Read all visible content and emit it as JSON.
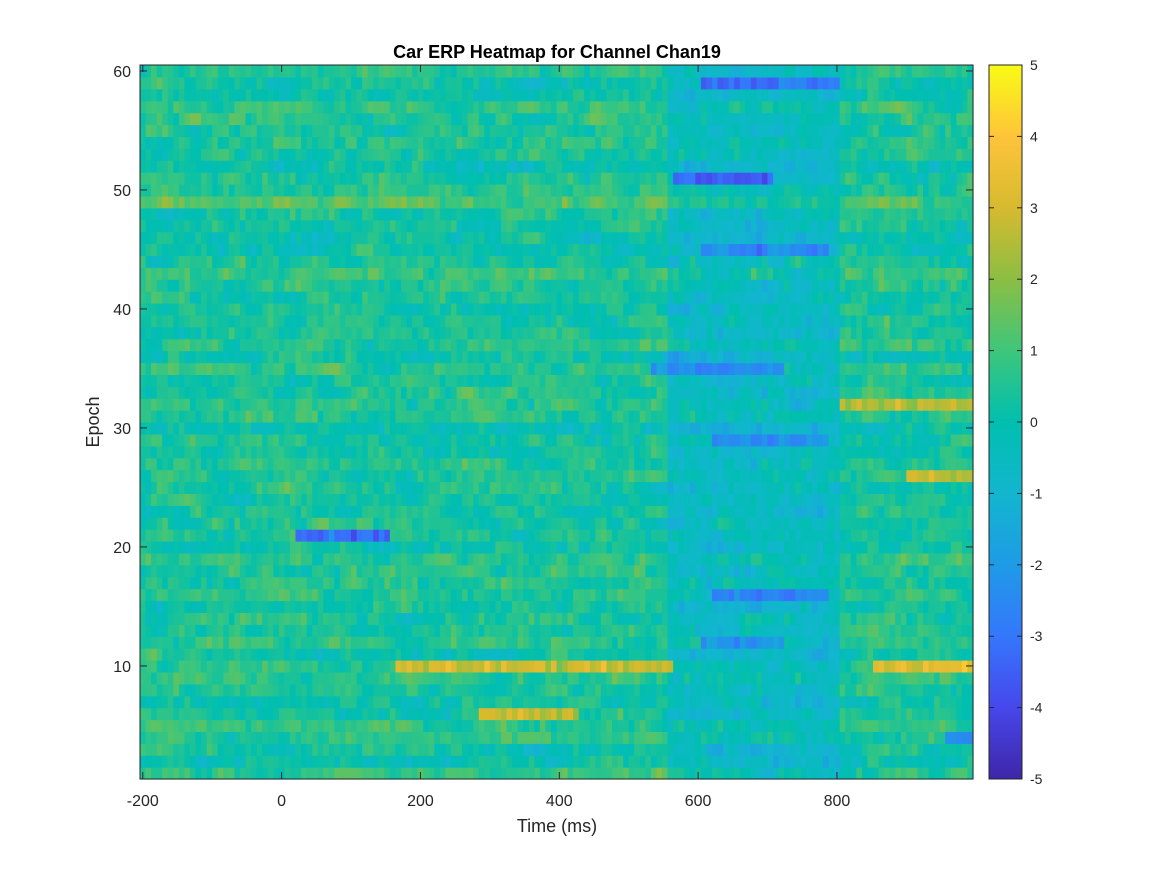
{
  "chart_data": {
    "type": "heatmap",
    "title": "Car ERP Heatmap for Channel Chan19",
    "xlabel": "Time (ms)",
    "ylabel": "Epoch",
    "xlim": [
      -204,
      996
    ],
    "ylim": [
      0.5,
      60.5
    ],
    "x_ticks": [
      -200,
      0,
      200,
      400,
      600,
      800
    ],
    "x_tick_labels": [
      "-200",
      "0",
      "200",
      "400",
      "600",
      "800"
    ],
    "y_ticks": [
      10,
      20,
      30,
      40,
      50,
      60
    ],
    "y_tick_labels": [
      "10",
      "20",
      "30",
      "40",
      "50",
      "60"
    ],
    "colormap": "parula",
    "clim": [
      -5,
      5
    ],
    "colorbar_ticks": [
      -5,
      -4,
      -3,
      -2,
      -1,
      0,
      1,
      2,
      3,
      4,
      5
    ],
    "colorbar_tick_labels": [
      "-5",
      "-4",
      "-3",
      "-2",
      "-1",
      "0",
      "1",
      "2",
      "3",
      "4",
      "5"
    ],
    "n_epochs": 60,
    "n_time_bins": 150,
    "time_bin_ms": 8,
    "dominant_value_range": [
      -1,
      2
    ],
    "features": [
      {
        "epoch": 10,
        "time_ms": [
          160,
          560
        ],
        "approx_value": 3.5
      },
      {
        "epoch": 10,
        "time_ms": [
          850,
          990
        ],
        "approx_value": 4.2
      },
      {
        "epoch": 21,
        "time_ms": [
          20,
          150
        ],
        "approx_value": -4.5
      },
      {
        "epoch": 51,
        "time_ms": [
          560,
          700
        ],
        "approx_value": -4.2
      },
      {
        "epoch": 59,
        "time_ms": [
          600,
          800
        ],
        "approx_value": -3.5
      },
      {
        "epoch": 45,
        "time_ms": [
          600,
          780
        ],
        "approx_value": -3.0
      },
      {
        "epoch": 29,
        "time_ms": [
          620,
          780
        ],
        "approx_value": -3.0
      },
      {
        "epoch": 32,
        "time_ms": [
          800,
          990
        ],
        "approx_value": 3.0
      },
      {
        "epoch": 35,
        "time_ms": [
          530,
          720
        ],
        "approx_value": -3.0
      },
      {
        "epoch": 6,
        "time_ms": [
          280,
          420
        ],
        "approx_value": 3.5
      },
      {
        "epoch": 16,
        "time_ms": [
          620,
          780
        ],
        "approx_value": -3.5
      },
      {
        "epoch": 12,
        "time_ms": [
          600,
          720
        ],
        "approx_value": -3.0
      },
      {
        "epoch": 4,
        "time_ms": [
          950,
          990
        ],
        "approx_value": -3.5
      },
      {
        "epoch": 26,
        "time_ms": [
          900,
          990
        ],
        "approx_value": 3.5
      }
    ]
  }
}
